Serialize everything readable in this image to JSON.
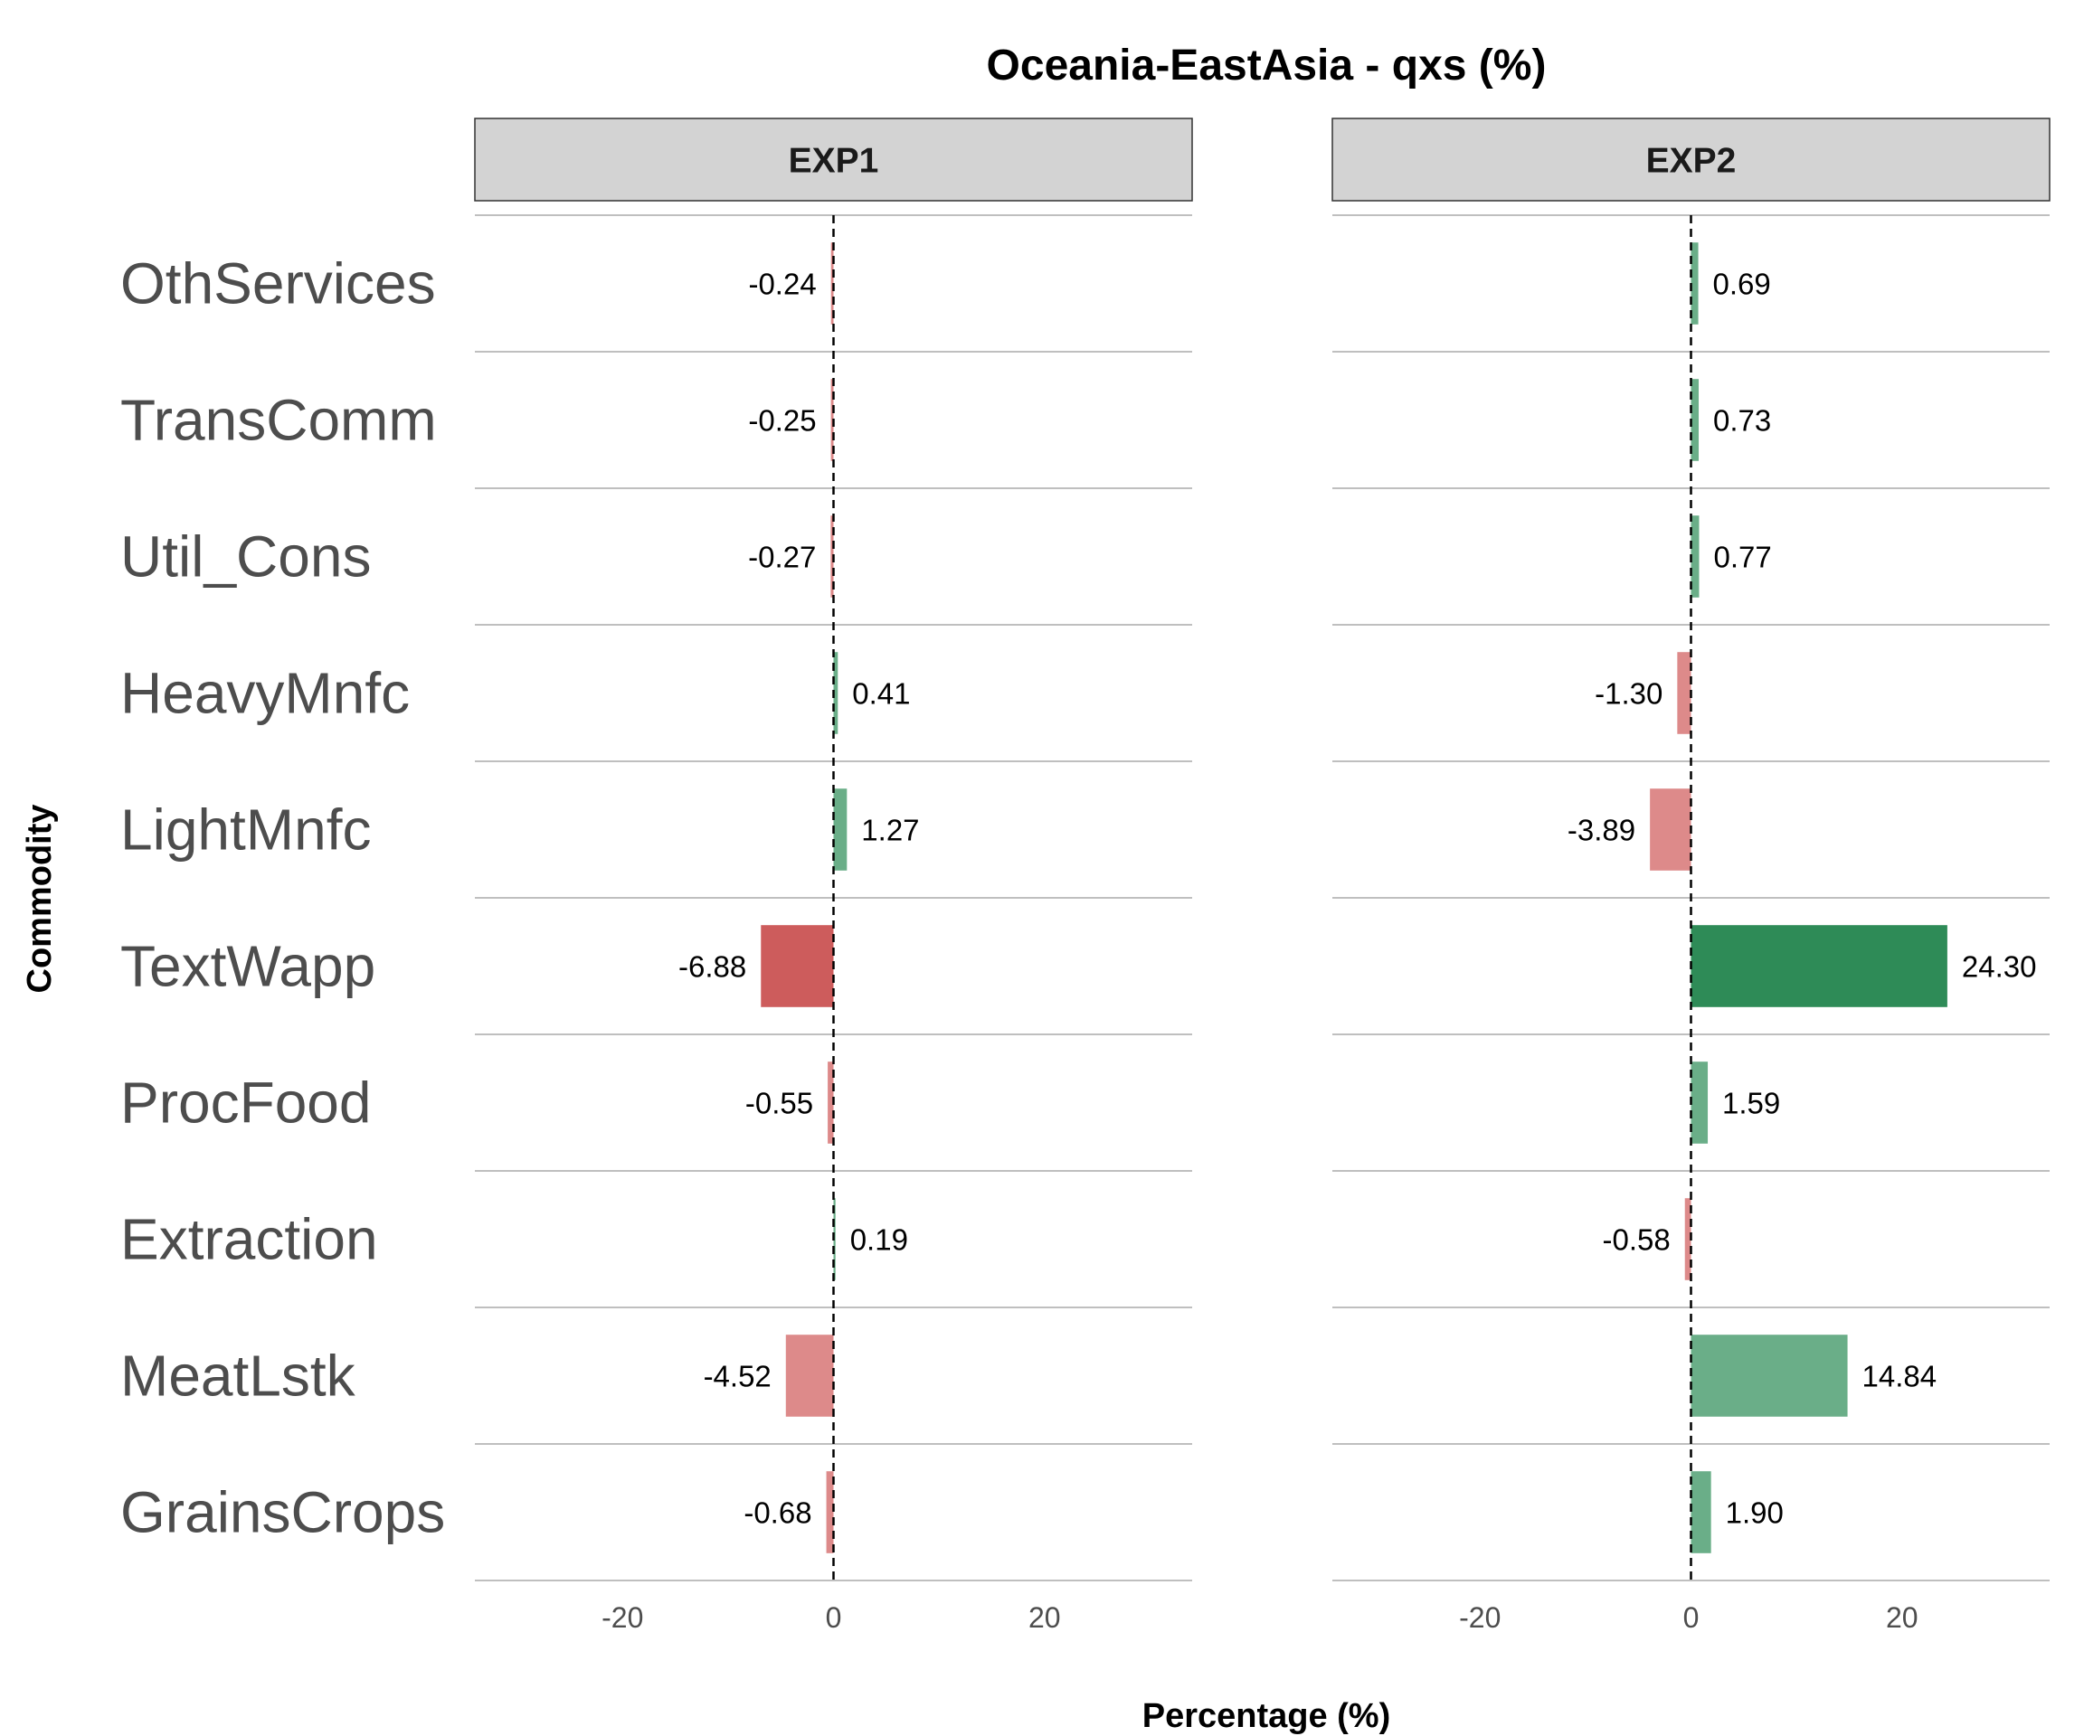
{
  "chart_data": {
    "type": "bar",
    "orientation": "horizontal",
    "title": "Oceania-EastAsia - qxs (%)",
    "xlabel": "Percentage (%)",
    "ylabel": "Commodity",
    "xlim": [
      -34,
      34
    ],
    "xticks": [
      -20,
      0,
      20
    ],
    "xtick_labels": [
      "-20",
      "0",
      "20"
    ],
    "reference_line": {
      "x": 0,
      "style": "dashed"
    },
    "grid": "horizontal",
    "legend": "none",
    "categories": [
      "OthServices",
      "TransComm",
      "Util_Cons",
      "HeavyMnfc",
      "LightMnfc",
      "TextWapp",
      "ProcFood",
      "Extraction",
      "MeatLstk",
      "GrainsCrops"
    ],
    "panels": [
      {
        "name": "EXP1",
        "values": [
          -0.24,
          -0.25,
          -0.27,
          0.41,
          1.27,
          -6.88,
          -0.55,
          0.19,
          -4.52,
          -0.68
        ],
        "value_labels": [
          "-0.24",
          "-0.25",
          "-0.27",
          "0.41",
          "1.27",
          "-6.88",
          "-0.55",
          "0.19",
          "-4.52",
          "-0.68"
        ]
      },
      {
        "name": "EXP2",
        "values": [
          0.69,
          0.73,
          0.77,
          -1.3,
          -3.89,
          24.3,
          1.59,
          -0.58,
          14.84,
          1.9
        ],
        "value_labels": [
          "0.69",
          "0.73",
          "0.77",
          "-1.30",
          "-3.89",
          "24.30",
          "1.59",
          "-0.58",
          "14.84",
          "1.90"
        ]
      }
    ],
    "colors": {
      "positive": "#2e8b57",
      "positive_light": "#6aae88",
      "negative": "#cd5c5c",
      "negative_light": "#dd8a8a",
      "strip_fill": "#d3d3d3",
      "gridline": "#bfbfbf"
    }
  }
}
